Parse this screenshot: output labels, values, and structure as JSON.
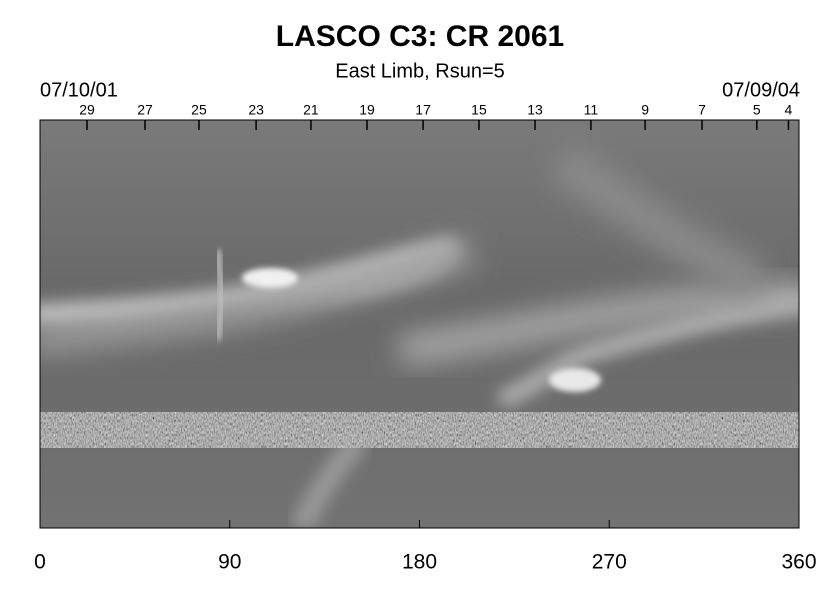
{
  "chart_data": {
    "type": "synoptic-map",
    "title": "LASCO C3: CR 2061",
    "subtitle": "East Limb, Rsun=5",
    "start_date": "07/10/01",
    "end_date": "07/09/04",
    "xlim": [
      0,
      360
    ],
    "xticks": [
      0,
      90,
      180,
      270,
      360
    ],
    "top_ticks": [
      {
        "value": 22.3,
        "label": "29"
      },
      {
        "value": 49.8,
        "label": "27"
      },
      {
        "value": 75.4,
        "label": "25"
      },
      {
        "value": 102.5,
        "label": "23"
      },
      {
        "value": 128.5,
        "label": "21"
      },
      {
        "value": 155.1,
        "label": "19"
      },
      {
        "value": 181.7,
        "label": "17"
      },
      {
        "value": 208.2,
        "label": "15"
      },
      {
        "value": 234.8,
        "label": "13"
      },
      {
        "value": 261.3,
        "label": "11"
      },
      {
        "value": 287,
        "label": "9"
      },
      {
        "value": 314,
        "label": "7"
      },
      {
        "value": 340,
        "label": "5"
      },
      {
        "value": 355,
        "label": "4"
      }
    ]
  }
}
